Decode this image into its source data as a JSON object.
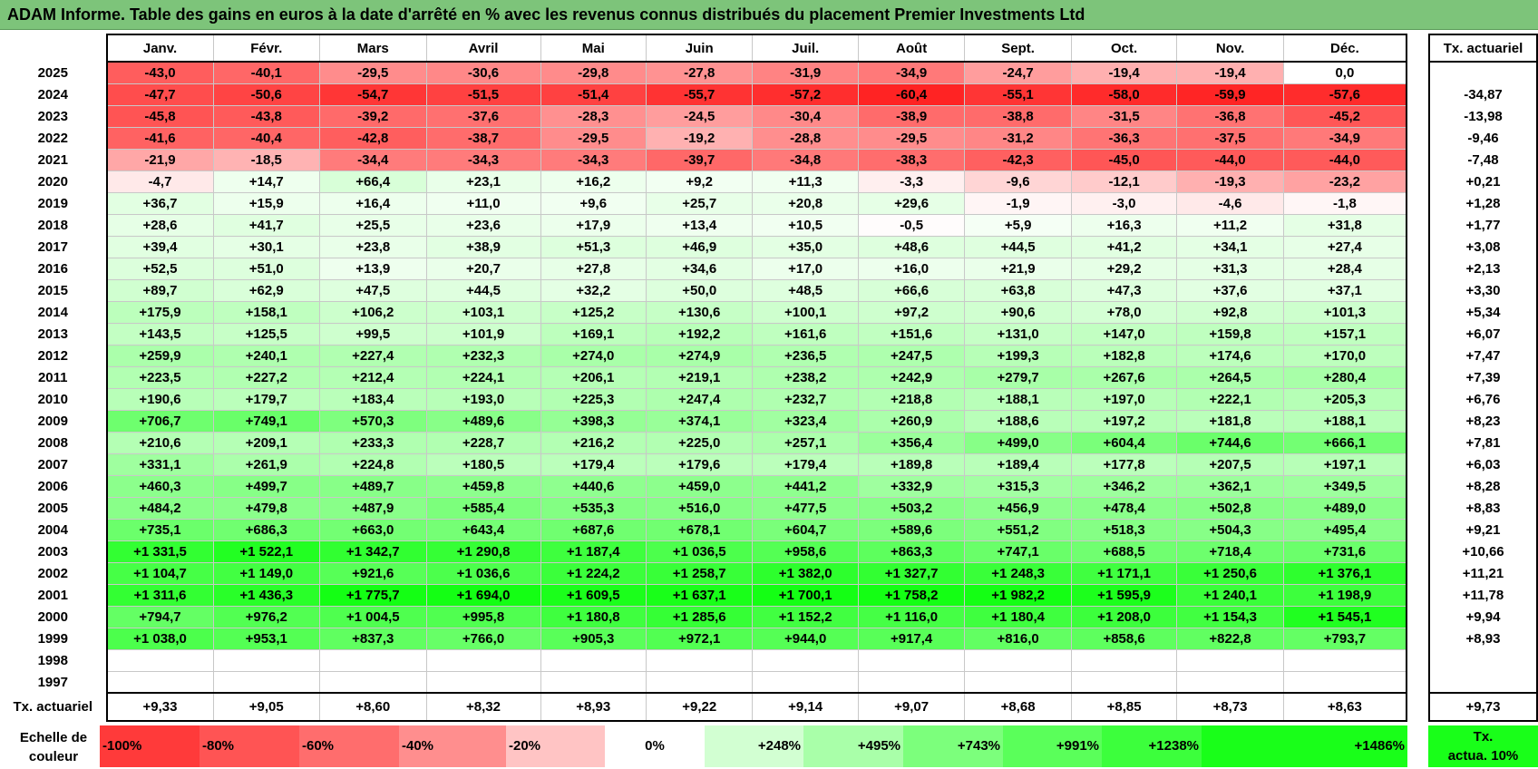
{
  "title": "ADAM Informe. Table des gains en euros à la date d'arrêté en % avec les revenus connus distribués du placement Premier Investments Ltd",
  "months": [
    "Janv.",
    "Févr.",
    "Mars",
    "Avril",
    "Mai",
    "Juin",
    "Juil.",
    "Août",
    "Sept.",
    "Oct.",
    "Nov.",
    "Déc."
  ],
  "side_header": "Tx. actuariel",
  "rows": [
    {
      "year": "2025",
      "values": [
        "-43,0",
        "-40,1",
        "-29,5",
        "-30,6",
        "-29,8",
        "-27,8",
        "-31,9",
        "-34,9",
        "-24,7",
        "-19,4",
        "-19,4",
        "0,0"
      ],
      "tx": ""
    },
    {
      "year": "2024",
      "values": [
        "-47,7",
        "-50,6",
        "-54,7",
        "-51,5",
        "-51,4",
        "-55,7",
        "-57,2",
        "-60,4",
        "-55,1",
        "-58,0",
        "-59,9",
        "-57,6"
      ],
      "tx": "-34,87"
    },
    {
      "year": "2023",
      "values": [
        "-45,8",
        "-43,8",
        "-39,2",
        "-37,6",
        "-28,3",
        "-24,5",
        "-30,4",
        "-38,9",
        "-38,8",
        "-31,5",
        "-36,8",
        "-45,2"
      ],
      "tx": "-13,98"
    },
    {
      "year": "2022",
      "values": [
        "-41,6",
        "-40,4",
        "-42,8",
        "-38,7",
        "-29,5",
        "-19,2",
        "-28,8",
        "-29,5",
        "-31,2",
        "-36,3",
        "-37,5",
        "-34,9"
      ],
      "tx": "-9,46"
    },
    {
      "year": "2021",
      "values": [
        "-21,9",
        "-18,5",
        "-34,4",
        "-34,3",
        "-34,3",
        "-39,7",
        "-34,8",
        "-38,3",
        "-42,3",
        "-45,0",
        "-44,0",
        "-44,0"
      ],
      "tx": "-7,48"
    },
    {
      "year": "2020",
      "values": [
        "-4,7",
        "+14,7",
        "+66,4",
        "+23,1",
        "+16,2",
        "+9,2",
        "+11,3",
        "-3,3",
        "-9,6",
        "-12,1",
        "-19,3",
        "-23,2"
      ],
      "tx": "+0,21"
    },
    {
      "year": "2019",
      "values": [
        "+36,7",
        "+15,9",
        "+16,4",
        "+11,0",
        "+9,6",
        "+25,7",
        "+20,8",
        "+29,6",
        "-1,9",
        "-3,0",
        "-4,6",
        "-1,8"
      ],
      "tx": "+1,28"
    },
    {
      "year": "2018",
      "values": [
        "+28,6",
        "+41,7",
        "+25,5",
        "+23,6",
        "+17,9",
        "+13,4",
        "+10,5",
        "-0,5",
        "+5,9",
        "+16,3",
        "+11,2",
        "+31,8"
      ],
      "tx": "+1,77"
    },
    {
      "year": "2017",
      "values": [
        "+39,4",
        "+30,1",
        "+23,8",
        "+38,9",
        "+51,3",
        "+46,9",
        "+35,0",
        "+48,6",
        "+44,5",
        "+41,2",
        "+34,1",
        "+27,4"
      ],
      "tx": "+3,08"
    },
    {
      "year": "2016",
      "values": [
        "+52,5",
        "+51,0",
        "+13,9",
        "+20,7",
        "+27,8",
        "+34,6",
        "+17,0",
        "+16,0",
        "+21,9",
        "+29,2",
        "+31,3",
        "+28,4"
      ],
      "tx": "+2,13"
    },
    {
      "year": "2015",
      "values": [
        "+89,7",
        "+62,9",
        "+47,5",
        "+44,5",
        "+32,2",
        "+50,0",
        "+48,5",
        "+66,6",
        "+63,8",
        "+47,3",
        "+37,6",
        "+37,1"
      ],
      "tx": "+3,30"
    },
    {
      "year": "2014",
      "values": [
        "+175,9",
        "+158,1",
        "+106,2",
        "+103,1",
        "+125,2",
        "+130,6",
        "+100,1",
        "+97,2",
        "+90,6",
        "+78,0",
        "+92,8",
        "+101,3"
      ],
      "tx": "+5,34"
    },
    {
      "year": "2013",
      "values": [
        "+143,5",
        "+125,5",
        "+99,5",
        "+101,9",
        "+169,1",
        "+192,2",
        "+161,6",
        "+151,6",
        "+131,0",
        "+147,0",
        "+159,8",
        "+157,1"
      ],
      "tx": "+6,07"
    },
    {
      "year": "2012",
      "values": [
        "+259,9",
        "+240,1",
        "+227,4",
        "+232,3",
        "+274,0",
        "+274,9",
        "+236,5",
        "+247,5",
        "+199,3",
        "+182,8",
        "+174,6",
        "+170,0"
      ],
      "tx": "+7,47"
    },
    {
      "year": "2011",
      "values": [
        "+223,5",
        "+227,2",
        "+212,4",
        "+224,1",
        "+206,1",
        "+219,1",
        "+238,2",
        "+242,9",
        "+279,7",
        "+267,6",
        "+264,5",
        "+280,4"
      ],
      "tx": "+7,39"
    },
    {
      "year": "2010",
      "values": [
        "+190,6",
        "+179,7",
        "+183,4",
        "+193,0",
        "+225,3",
        "+247,4",
        "+232,7",
        "+218,8",
        "+188,1",
        "+197,0",
        "+222,1",
        "+205,3"
      ],
      "tx": "+6,76"
    },
    {
      "year": "2009",
      "values": [
        "+706,7",
        "+749,1",
        "+570,3",
        "+489,6",
        "+398,3",
        "+374,1",
        "+323,4",
        "+260,9",
        "+188,6",
        "+197,2",
        "+181,8",
        "+188,1"
      ],
      "tx": "+8,23"
    },
    {
      "year": "2008",
      "values": [
        "+210,6",
        "+209,1",
        "+233,3",
        "+228,7",
        "+216,2",
        "+225,0",
        "+257,1",
        "+356,4",
        "+499,0",
        "+604,4",
        "+744,6",
        "+666,1"
      ],
      "tx": "+7,81"
    },
    {
      "year": "2007",
      "values": [
        "+331,1",
        "+261,9",
        "+224,8",
        "+180,5",
        "+179,4",
        "+179,6",
        "+179,4",
        "+189,8",
        "+189,4",
        "+177,8",
        "+207,5",
        "+197,1"
      ],
      "tx": "+6,03"
    },
    {
      "year": "2006",
      "values": [
        "+460,3",
        "+499,7",
        "+489,7",
        "+459,8",
        "+440,6",
        "+459,0",
        "+441,2",
        "+332,9",
        "+315,3",
        "+346,2",
        "+362,1",
        "+349,5"
      ],
      "tx": "+8,28"
    },
    {
      "year": "2005",
      "values": [
        "+484,2",
        "+479,8",
        "+487,9",
        "+585,4",
        "+535,3",
        "+516,0",
        "+477,5",
        "+503,2",
        "+456,9",
        "+478,4",
        "+502,8",
        "+489,0"
      ],
      "tx": "+8,83"
    },
    {
      "year": "2004",
      "values": [
        "+735,1",
        "+686,3",
        "+663,0",
        "+643,4",
        "+687,6",
        "+678,1",
        "+604,7",
        "+589,6",
        "+551,2",
        "+518,3",
        "+504,3",
        "+495,4"
      ],
      "tx": "+9,21"
    },
    {
      "year": "2003",
      "values": [
        "+1 331,5",
        "+1 522,1",
        "+1 342,7",
        "+1 290,8",
        "+1 187,4",
        "+1 036,5",
        "+958,6",
        "+863,3",
        "+747,1",
        "+688,5",
        "+718,4",
        "+731,6"
      ],
      "tx": "+10,66"
    },
    {
      "year": "2002",
      "values": [
        "+1 104,7",
        "+1 149,0",
        "+921,6",
        "+1 036,6",
        "+1 224,2",
        "+1 258,7",
        "+1 382,0",
        "+1 327,7",
        "+1 248,3",
        "+1 171,1",
        "+1 250,6",
        "+1 376,1"
      ],
      "tx": "+11,21"
    },
    {
      "year": "2001",
      "values": [
        "+1 311,6",
        "+1 436,3",
        "+1 775,7",
        "+1 694,0",
        "+1 609,5",
        "+1 637,1",
        "+1 700,1",
        "+1 758,2",
        "+1 982,2",
        "+1 595,9",
        "+1 240,1",
        "+1 198,9"
      ],
      "tx": "+11,78"
    },
    {
      "year": "2000",
      "values": [
        "+794,7",
        "+976,2",
        "+1 004,5",
        "+995,8",
        "+1 180,8",
        "+1 285,6",
        "+1 152,2",
        "+1 116,0",
        "+1 180,4",
        "+1 208,0",
        "+1 154,3",
        "+1 545,1"
      ],
      "tx": "+9,94"
    },
    {
      "year": "1999",
      "values": [
        "+1 038,0",
        "+953,1",
        "+837,3",
        "+766,0",
        "+905,3",
        "+972,1",
        "+944,0",
        "+917,4",
        "+816,0",
        "+858,6",
        "+822,8",
        "+793,7"
      ],
      "tx": "+8,93"
    },
    {
      "year": "1998",
      "values": [
        "",
        "",
        "",
        "",
        "",
        "",
        "",
        "",
        "",
        "",
        "",
        ""
      ],
      "tx": ""
    },
    {
      "year": "1997",
      "values": [
        "",
        "",
        "",
        "",
        "",
        "",
        "",
        "",
        "",
        "",
        "",
        ""
      ],
      "tx": ""
    }
  ],
  "totals": {
    "label": "Tx. actuariel",
    "values": [
      "+9,33",
      "+9,05",
      "+8,60",
      "+8,32",
      "+8,93",
      "+9,22",
      "+9,14",
      "+9,07",
      "+8,68",
      "+8,85",
      "+8,73",
      "+8,63"
    ],
    "tx": "+9,73"
  },
  "legend": {
    "label_line1": "Echelle de",
    "label_line2": "couleur",
    "scale": [
      {
        "label": "-100%",
        "color": "#ff3a3a",
        "align": "left"
      },
      {
        "label": "-80%",
        "color": "#ff5454",
        "align": "left"
      },
      {
        "label": "-60%",
        "color": "#ff6d6d",
        "align": "left"
      },
      {
        "label": "-40%",
        "color": "#ff8e8e",
        "align": "left"
      },
      {
        "label": "-20%",
        "color": "#ffc4c4",
        "align": "left"
      },
      {
        "label": "0%",
        "color": "#ffffff",
        "align": "center"
      },
      {
        "label": "+248%",
        "color": "#d2ffd2",
        "align": "right"
      },
      {
        "label": "+495%",
        "color": "#a9ffa9",
        "align": "right"
      },
      {
        "label": "+743%",
        "color": "#7cff7c",
        "align": "right"
      },
      {
        "label": "+991%",
        "color": "#5aff5a",
        "align": "right"
      },
      {
        "label": "+1238%",
        "color": "#3cff3c",
        "align": "right"
      },
      {
        "label": "+1486%",
        "color": "#19ff19",
        "align": "right"
      }
    ],
    "tx_line1": "Tx.",
    "tx_line2": "actua. 10%",
    "tx_color": "#19ff19"
  }
}
